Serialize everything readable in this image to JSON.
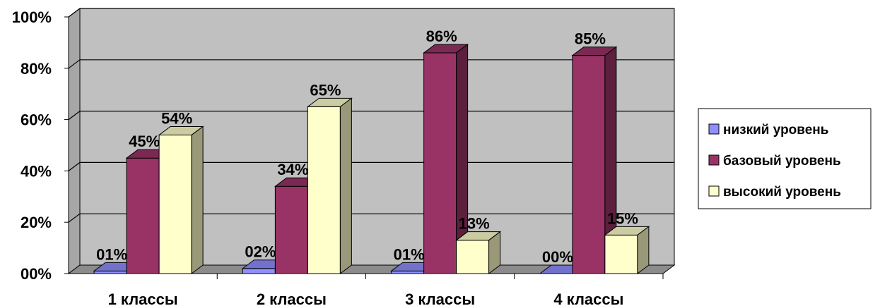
{
  "chart_data": {
    "type": "bar",
    "categories": [
      "1 классы",
      "2 классы",
      "3 классы",
      "4 классы"
    ],
    "series": [
      {
        "name": "низкий уровень",
        "values": [
          1,
          2,
          1,
          0
        ],
        "labels": [
          "01%",
          "02%",
          "01%",
          "00%"
        ],
        "color": "#8f8fff"
      },
      {
        "name": "базовый уровень",
        "values": [
          45,
          34,
          86,
          85
        ],
        "labels": [
          "45%",
          "34%",
          "86%",
          "85%"
        ],
        "color": "#993366"
      },
      {
        "name": "высокий уровень",
        "values": [
          54,
          65,
          13,
          15
        ],
        "labels": [
          "54%",
          "65%",
          "13%",
          "15%"
        ],
        "color": "#ffffcc"
      }
    ],
    "yticks": [
      "00%",
      "20%",
      "40%",
      "60%",
      "80%",
      "100%"
    ],
    "ylim": [
      0,
      100
    ],
    "grid": true,
    "legend_position": "right",
    "plot_background": "#c0c0c0",
    "title": "",
    "xlabel": "",
    "ylabel": ""
  }
}
